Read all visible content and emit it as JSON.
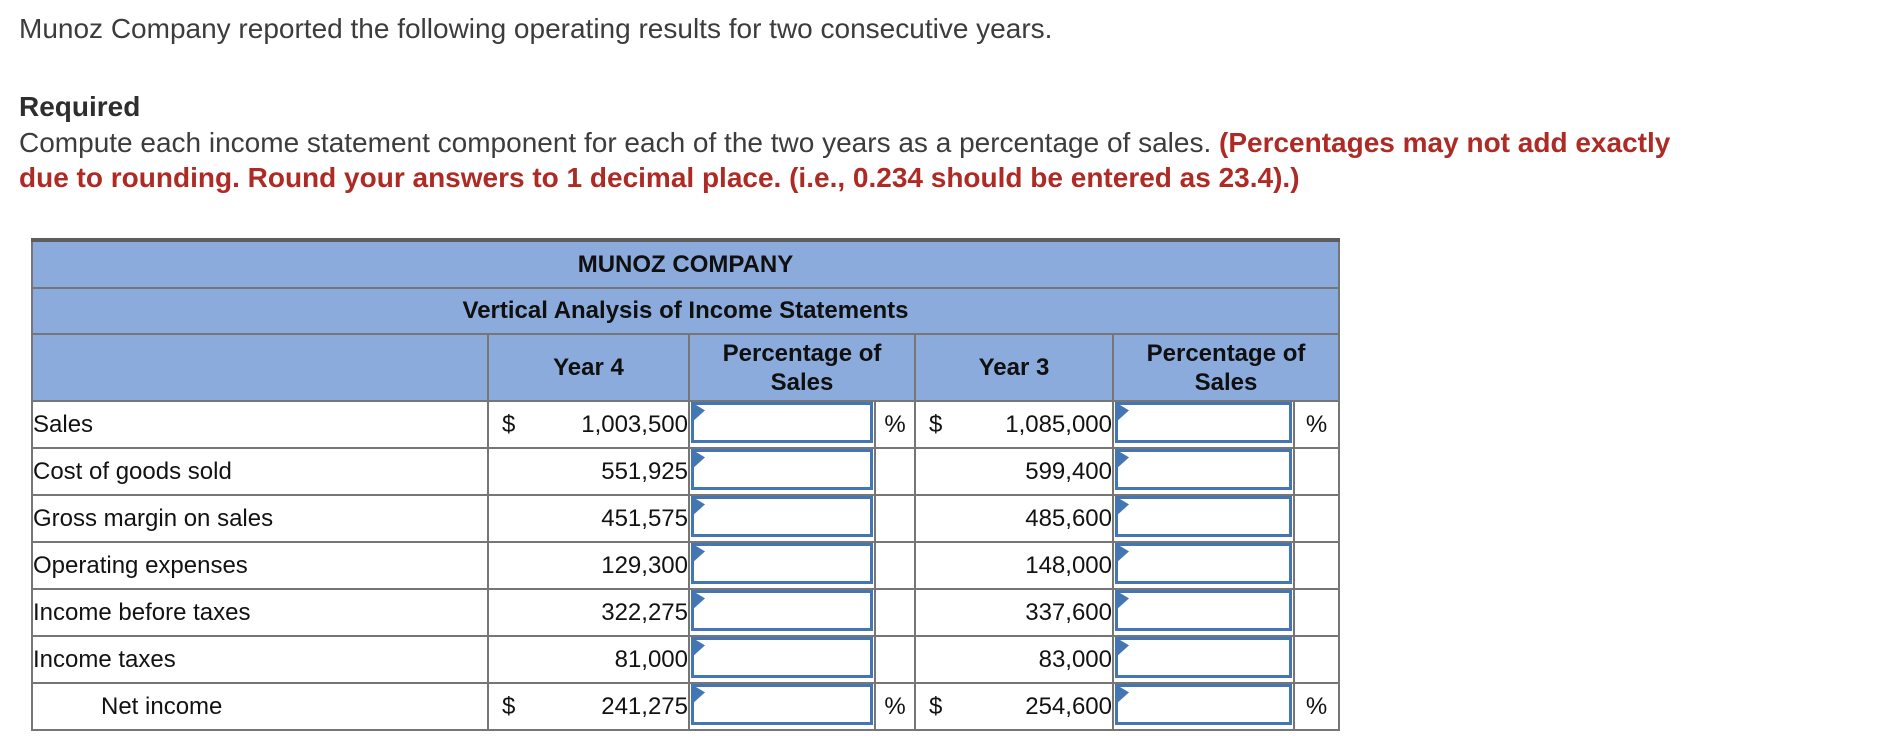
{
  "intro": "Munoz Company reported the following operating results for two consecutive years.",
  "required_label": "Required",
  "instruction_black": "Compute each income statement component for each of the two years as a percentage of sales.",
  "instruction_red_line1": "(Percentages may not add exactly",
  "instruction_red_line2": "due to rounding. Round your answers to 1 decimal place. (i.e., 0.234 should be entered as 23.4).)",
  "table": {
    "title": "MUNOZ COMPANY",
    "subtitle": "Vertical Analysis of Income Statements",
    "columns": {
      "year4": "Year 4",
      "pct_of_sales_1": "Percentage of Sales",
      "year3": "Year 3",
      "pct_of_sales_2": "Percentage of Sales"
    },
    "dollar_symbol": "$",
    "percent_symbol": "%",
    "rows": [
      {
        "label": "Sales",
        "year4": "1,003,500",
        "year3": "1,085,000",
        "dollar": true,
        "pct": true,
        "indent": false,
        "underline": "none",
        "year4_input": "",
        "year3_input": ""
      },
      {
        "label": "Cost of goods sold",
        "year4": "551,925",
        "year3": "599,400",
        "dollar": false,
        "pct": false,
        "indent": false,
        "underline": "single",
        "year4_input": "",
        "year3_input": ""
      },
      {
        "label": "Gross margin on sales",
        "year4": "451,575",
        "year3": "485,600",
        "dollar": false,
        "pct": false,
        "indent": false,
        "underline": "none",
        "year4_input": "",
        "year3_input": ""
      },
      {
        "label": "Operating expenses",
        "year4": "129,300",
        "year3": "148,000",
        "dollar": false,
        "pct": false,
        "indent": false,
        "underline": "single",
        "year4_input": "",
        "year3_input": ""
      },
      {
        "label": "Income before taxes",
        "year4": "322,275",
        "year3": "337,600",
        "dollar": false,
        "pct": false,
        "indent": false,
        "underline": "none",
        "year4_input": "",
        "year3_input": ""
      },
      {
        "label": "Income taxes",
        "year4": "81,000",
        "year3": "83,000",
        "dollar": false,
        "pct": false,
        "indent": false,
        "underline": "single",
        "year4_input": "",
        "year3_input": ""
      },
      {
        "label": "Net income",
        "year4": "241,275",
        "year3": "254,600",
        "dollar": true,
        "pct": true,
        "indent": true,
        "underline": "double",
        "year4_input": "",
        "year3_input": ""
      }
    ],
    "colors": {
      "header_bg": "#8AABDC",
      "input_border": "#4576B4",
      "grid_border": "#767676",
      "red_instruction": "#AE2B25"
    }
  }
}
